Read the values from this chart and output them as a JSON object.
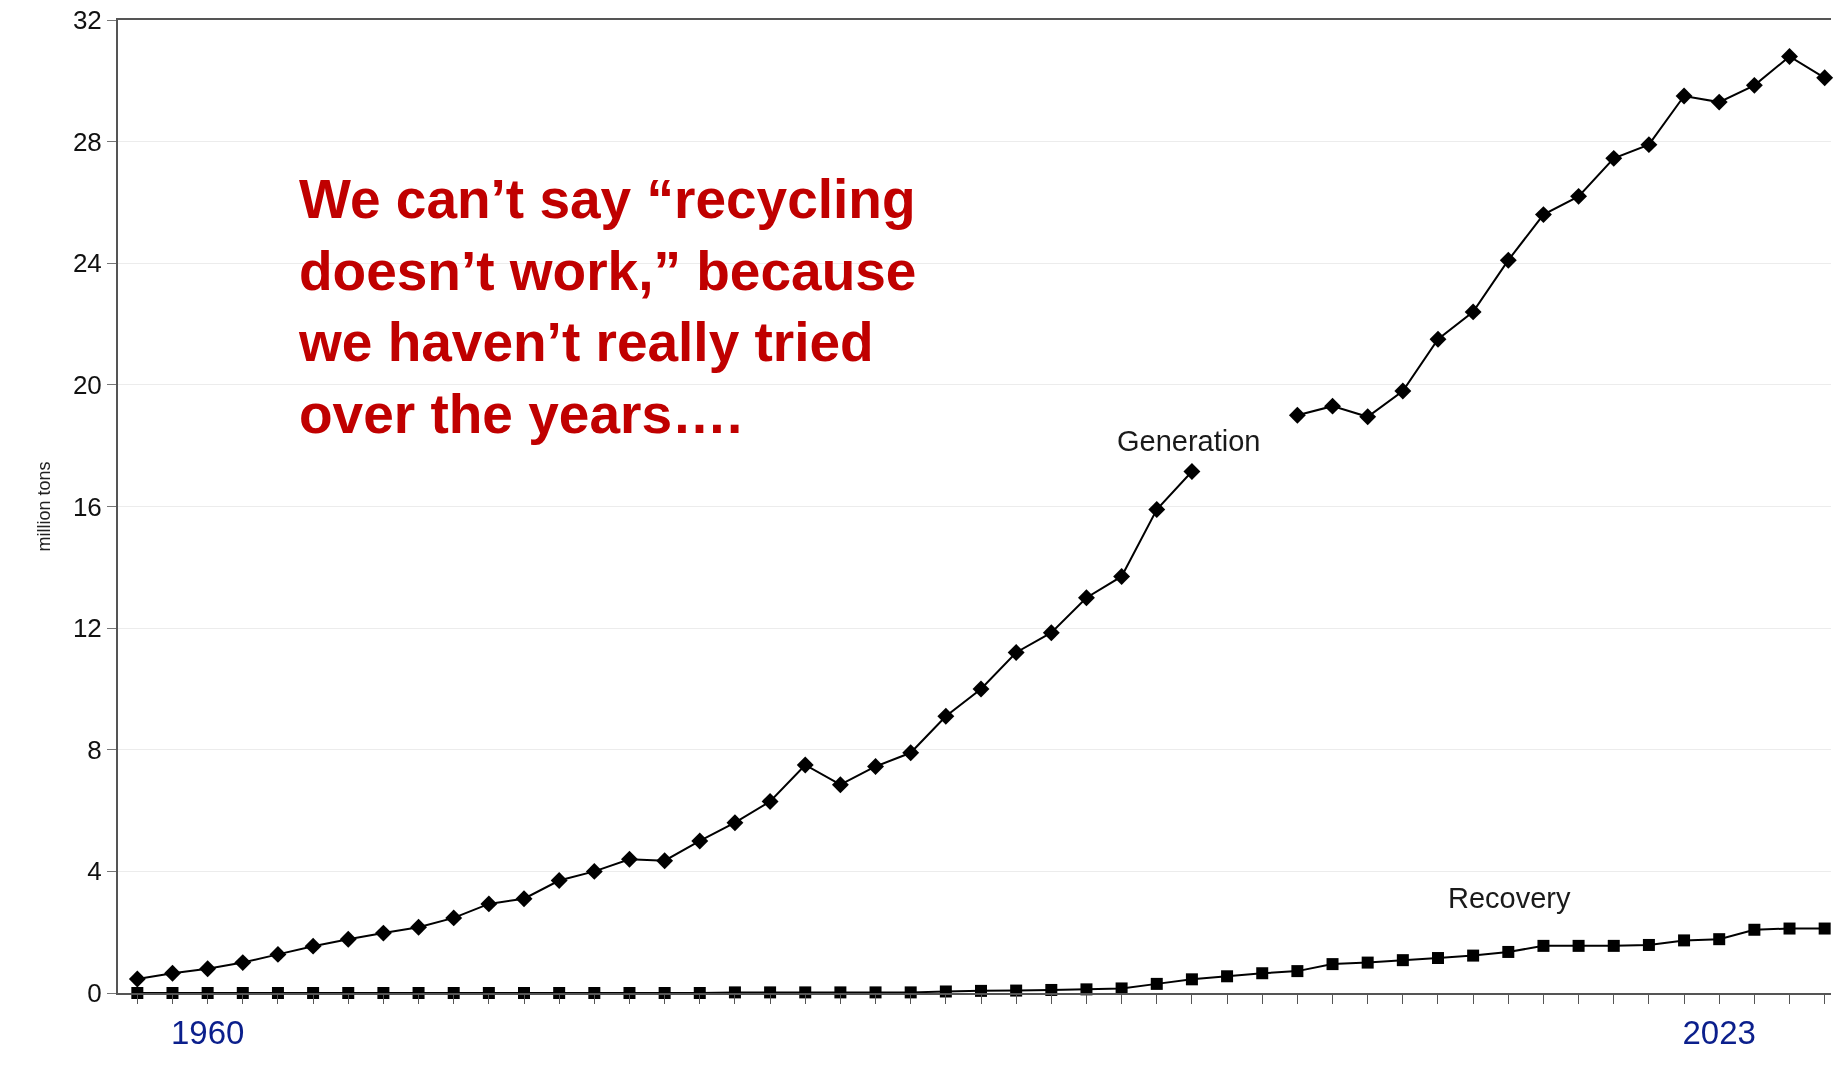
{
  "chart_data": {
    "type": "line",
    "ylabel": "million tons",
    "categories": [
      null,
      null,
      "1960",
      null,
      null,
      null,
      null,
      null,
      null,
      null,
      null,
      null,
      null,
      null,
      null,
      null,
      null,
      null,
      null,
      null,
      null,
      null,
      null,
      null,
      null,
      null,
      null,
      null,
      null,
      null,
      null,
      null,
      null,
      null,
      null,
      null,
      null,
      null,
      null,
      null,
      null,
      null,
      null,
      null,
      null,
      "2023",
      null,
      null,
      null
    ],
    "series": [
      {
        "name": "Generation",
        "color": "#000000",
        "marker": "diamond",
        "values": [
          0.46,
          0.65,
          0.8,
          1.0,
          1.27,
          1.54,
          1.77,
          1.97,
          2.16,
          2.47,
          2.93,
          3.1,
          3.7,
          4.0,
          4.4,
          4.35,
          5.0,
          5.6,
          6.3,
          7.5,
          6.85,
          7.45,
          7.9,
          9.1,
          10.0,
          11.2,
          11.85,
          13.0,
          13.7,
          15.9,
          17.15,
          null,
          null,
          19.0,
          19.3,
          18.95,
          19.8,
          21.5,
          22.4,
          24.1,
          25.6,
          26.2,
          27.45,
          27.9,
          29.5,
          29.3,
          29.85,
          30.8,
          30.1
        ]
      },
      {
        "name": "Recovery",
        "color": "#000000",
        "marker": "square",
        "values": [
          0,
          0,
          0,
          0,
          0,
          0,
          0,
          0,
          0,
          0,
          0,
          0,
          0,
          0,
          0,
          0,
          0,
          0.02,
          0.02,
          0.02,
          0.02,
          0.02,
          0.02,
          0.05,
          0.07,
          0.08,
          0.1,
          0.12,
          0.15,
          0.3,
          0.45,
          0.55,
          0.65,
          0.72,
          0.95,
          1.0,
          1.08,
          1.15,
          1.23,
          1.35,
          1.55,
          1.55,
          1.55,
          1.58,
          1.73,
          1.77,
          2.08,
          2.12,
          2.12
        ]
      }
    ],
    "ylim": [
      0,
      32
    ],
    "yticks": [
      0,
      4,
      8,
      12,
      16,
      20,
      24,
      28,
      32
    ],
    "grid": "y",
    "legend": false,
    "line_style": "solid",
    "annotations": [
      "We can’t say “recycling\ndoesn’t work,” because\nwe haven’t really tried\nover the years…."
    ]
  }
}
